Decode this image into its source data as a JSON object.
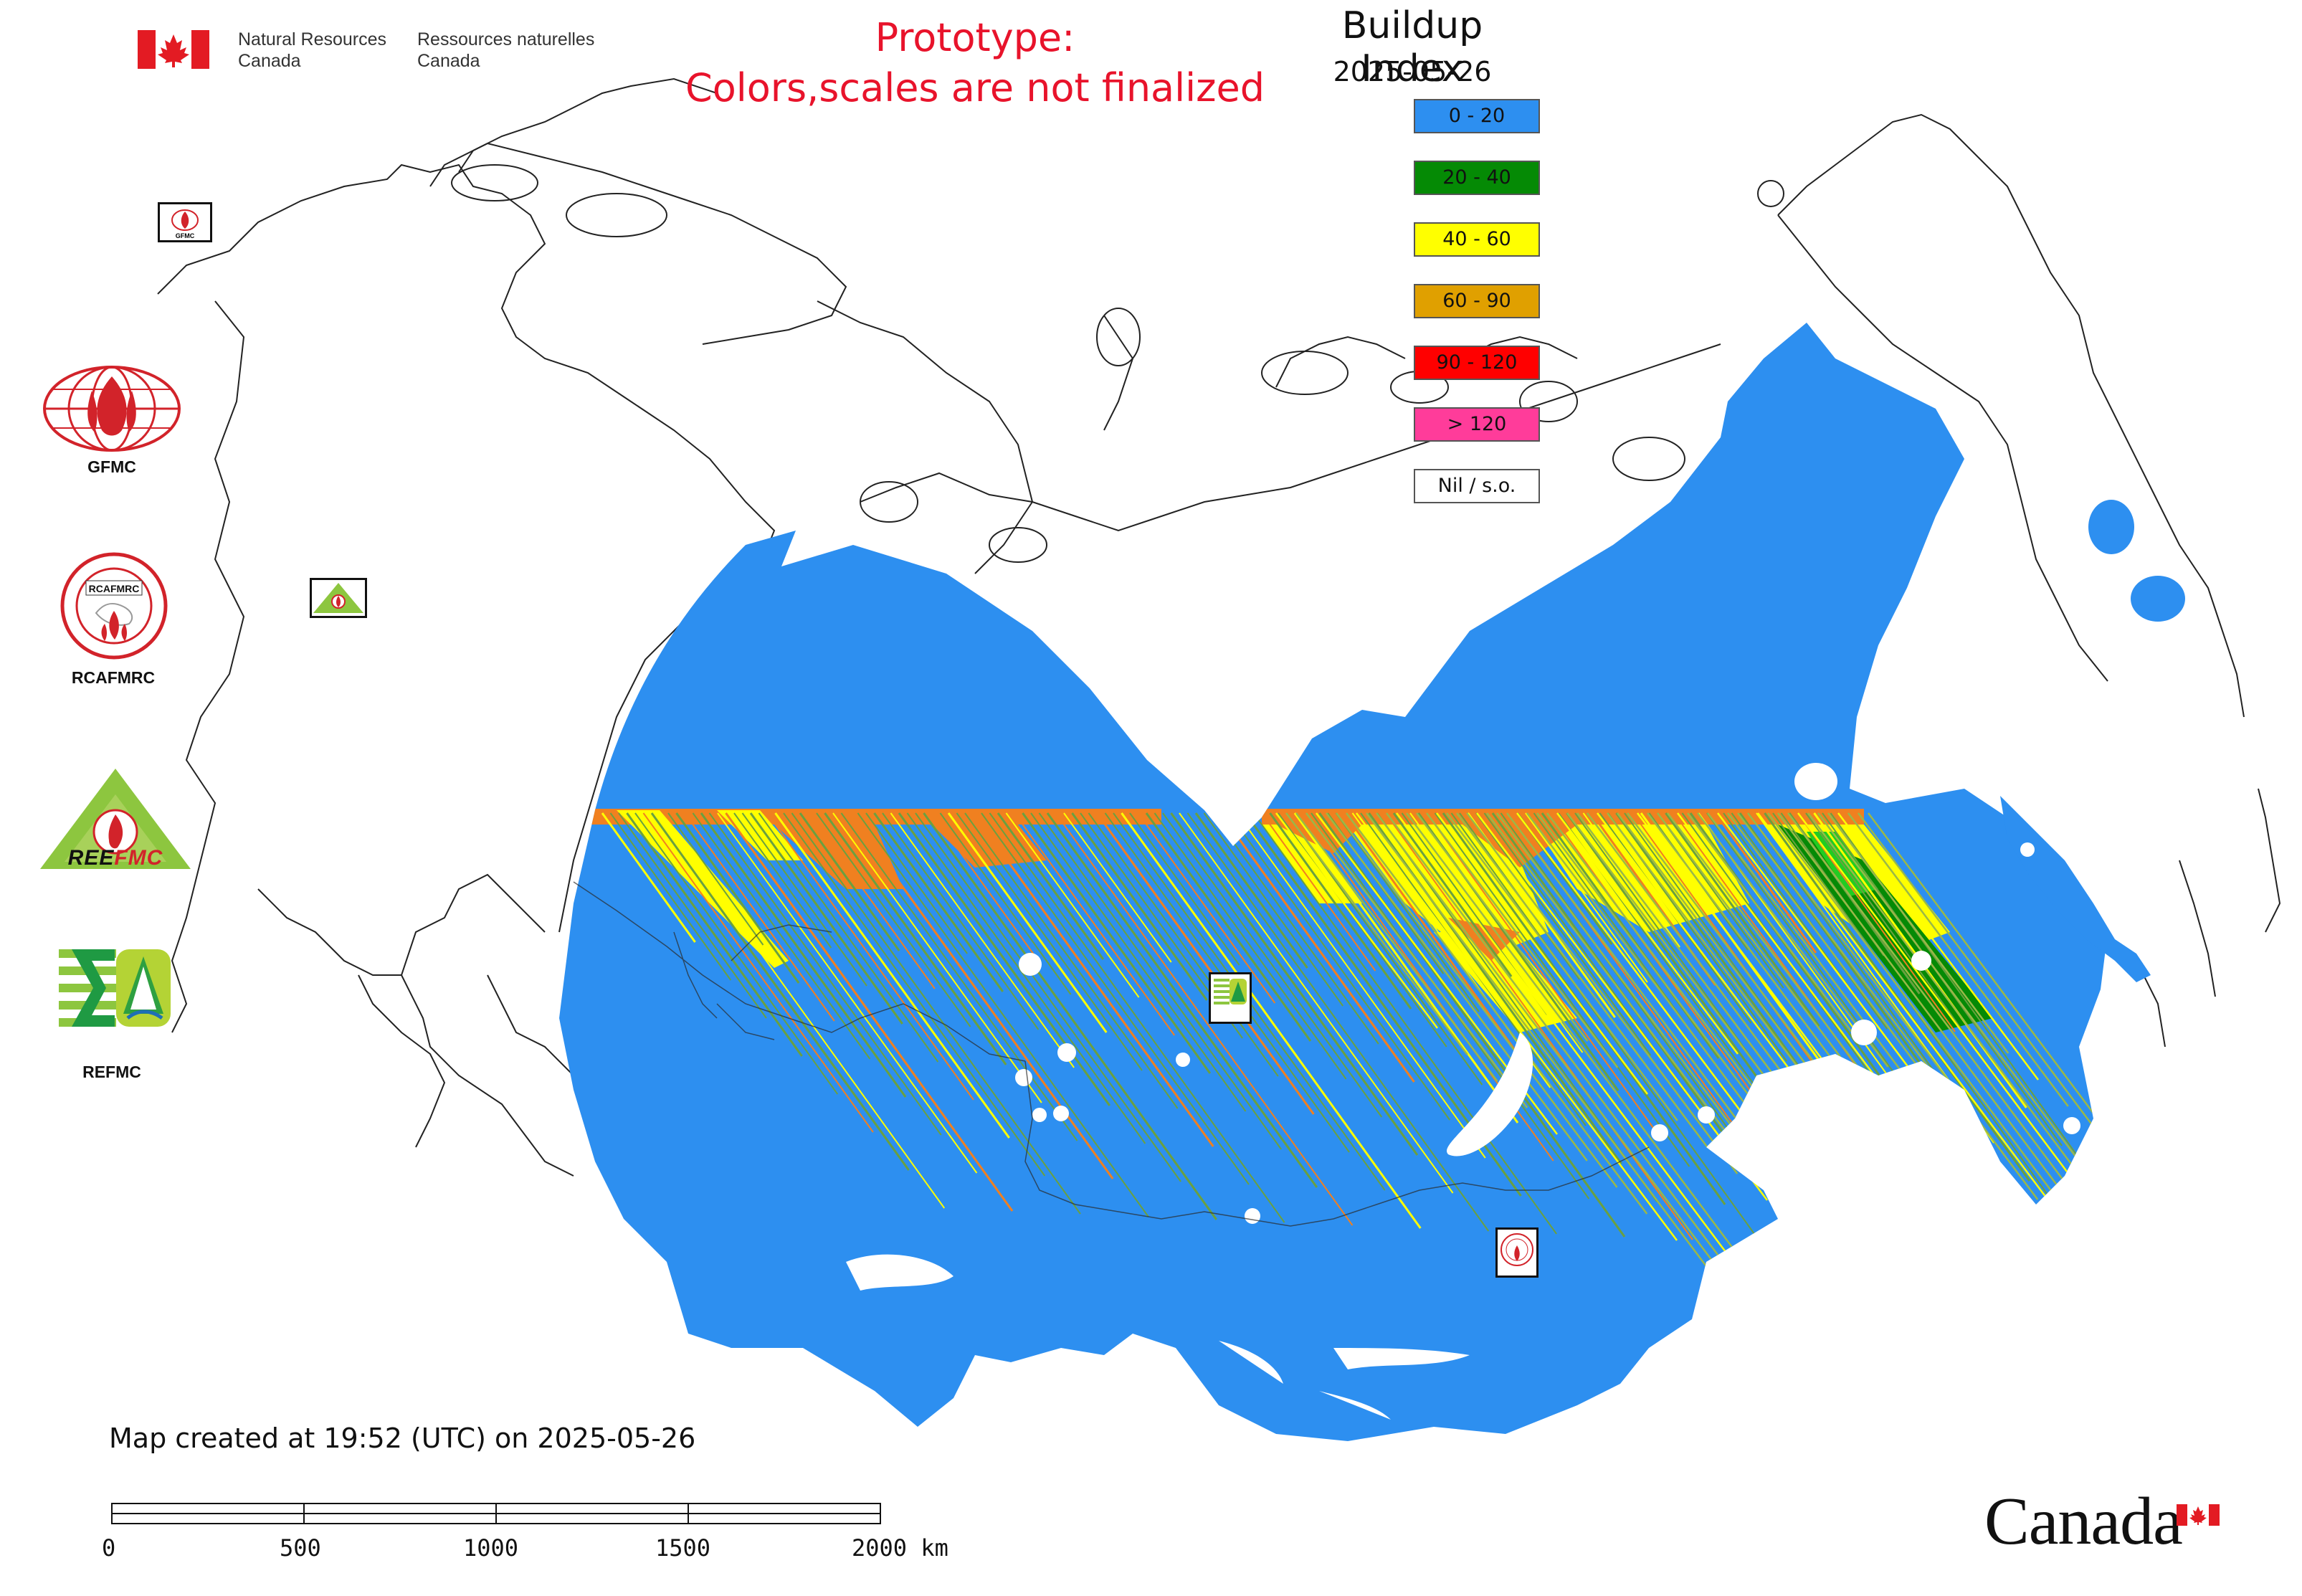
{
  "header": {
    "department_en_1": "Natural Resources",
    "department_en_2": "Canada",
    "department_fr_1": "Ressources naturelles",
    "department_fr_2": "Canada",
    "prototype_line1": "Prototype:",
    "prototype_line2": "Colors,scales are not finalized"
  },
  "legend": {
    "title": "Buildup Index",
    "date": "2025-05-26",
    "items": [
      {
        "label": "0 - 20",
        "color": "#2d8ff0"
      },
      {
        "label": "20 - 40",
        "color": "#058a05"
      },
      {
        "label": "40 - 60",
        "color": "#ffff00"
      },
      {
        "label": "60 - 90",
        "color": "#e0a000"
      },
      {
        "label": "90 - 120",
        "color": "#ff0000"
      },
      {
        "label": "> 120",
        "color": "#ff3c9a"
      },
      {
        "label": "Nil / s.o.",
        "color": "#ffffff"
      }
    ]
  },
  "logos": {
    "gfmc_label": "GFMC",
    "rcafmrc_label": "RCAFMRC",
    "reefmc_label": "REEFMC",
    "refmc_label": "REFMC"
  },
  "footer": {
    "created_text": "Map created at 19:52 (UTC) on 2025-05-26",
    "scale_labels": [
      "0",
      "500",
      "1000",
      "1500",
      "2000 km"
    ],
    "wordmark": "Canada"
  },
  "colors": {
    "bui_low": "#2d8ff0",
    "bui_moderate": "#058a05",
    "bui_high": "#ffff00",
    "bui_very_high": "#e0a000",
    "bui_orange_band": "#f08020",
    "bui_extreme": "#ff0000",
    "bui_max": "#ff3c9a",
    "canada_red": "#e31b23",
    "prototype_red": "#e8132b"
  }
}
